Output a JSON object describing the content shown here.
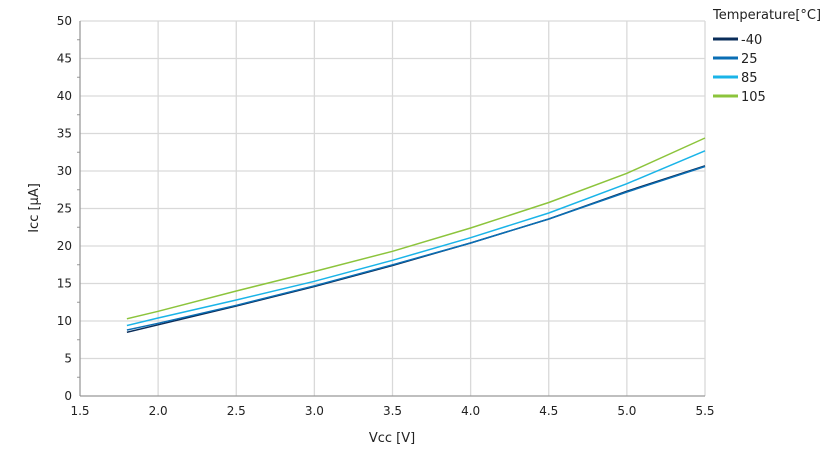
{
  "chart_data": {
    "type": "line",
    "xlabel": "Vcc [V]",
    "ylabel": "Icc [µA]",
    "xlim": [
      1.5,
      5.5
    ],
    "ylim": [
      0,
      50
    ],
    "xticks": [
      "1.5",
      "2.0",
      "2.5",
      "3.0",
      "3.5",
      "4.0",
      "4.5",
      "5.0",
      "5.5"
    ],
    "yticks": [
      "0",
      "5",
      "10",
      "15",
      "20",
      "25",
      "30",
      "35",
      "40",
      "45",
      "50"
    ],
    "grid": true,
    "legend": {
      "title": "Temperature[°C]",
      "placement": "top-right"
    },
    "x": [
      1.8,
      2.0,
      2.5,
      3.0,
      3.5,
      4.0,
      4.5,
      5.0,
      5.5
    ],
    "series": [
      {
        "name": "-40",
        "color": "#0a2d5a",
        "values": [
          8.5,
          9.5,
          12.0,
          14.6,
          17.4,
          20.4,
          23.6,
          27.3,
          30.7
        ]
      },
      {
        "name": "25",
        "color": "#0a6eb4",
        "values": [
          8.8,
          9.7,
          12.1,
          14.7,
          17.5,
          20.4,
          23.6,
          27.2,
          30.6
        ]
      },
      {
        "name": "85",
        "color": "#1ab4e8",
        "values": [
          9.4,
          10.4,
          12.8,
          15.3,
          18.1,
          21.1,
          24.4,
          28.3,
          32.7
        ]
      },
      {
        "name": "105",
        "color": "#8cc43c",
        "values": [
          10.3,
          11.3,
          14.0,
          16.6,
          19.3,
          22.4,
          25.8,
          29.7,
          34.4
        ]
      }
    ]
  }
}
